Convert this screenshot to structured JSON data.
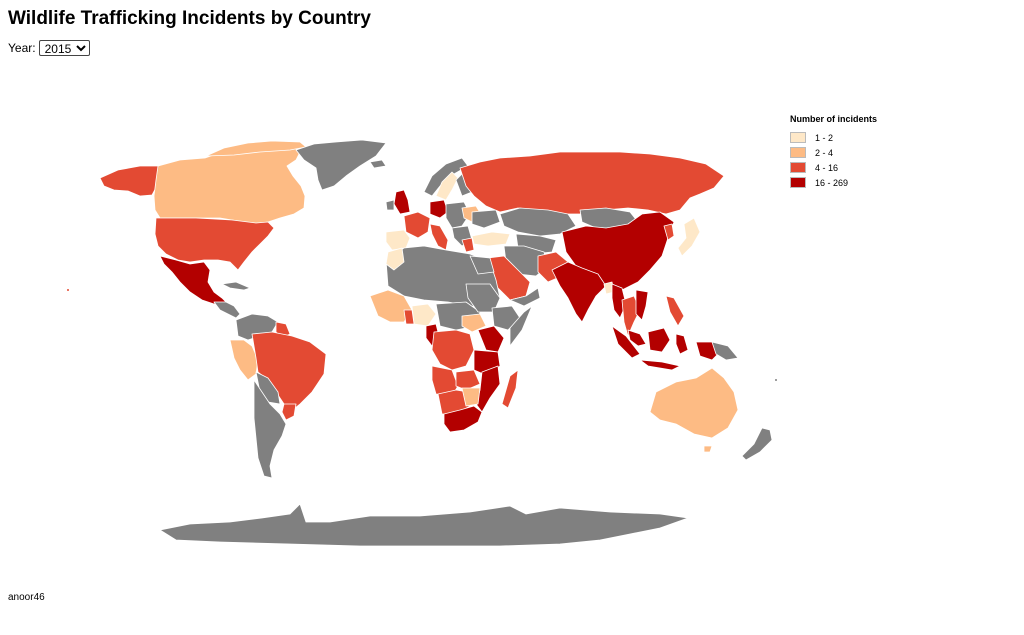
{
  "title": "Wildlife Trafficking Incidents by Country",
  "year_label": "Year:",
  "year_selected": "2015",
  "year_options": [
    "2015"
  ],
  "legend": {
    "title": "Number of incidents",
    "items": [
      {
        "label": "1 - 2",
        "color": "#fee8c8"
      },
      {
        "label": "2 - 4",
        "color": "#fdbb84"
      },
      {
        "label": "4 - 16",
        "color": "#e34a33"
      },
      {
        "label": "16 - 269",
        "color": "#b30000"
      }
    ]
  },
  "colors": {
    "no_data": "#808080",
    "border": "#ffffff"
  },
  "footer": "anoor46"
}
